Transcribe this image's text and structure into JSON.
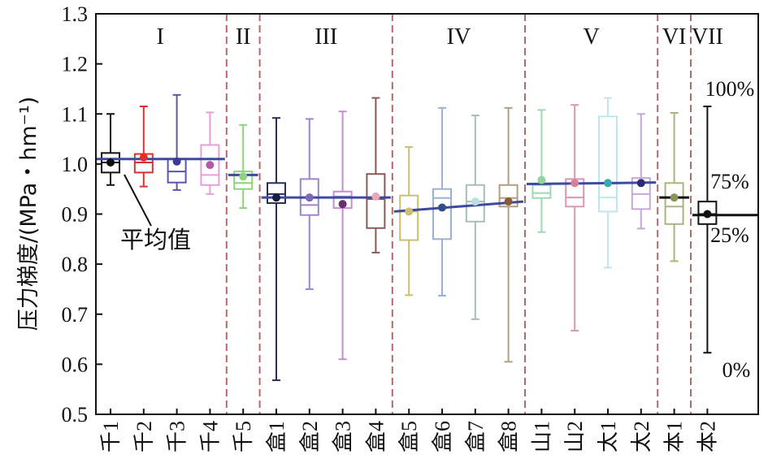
{
  "chart_data": {
    "type": "box",
    "ylabel": "压力梯度/(MPa・hm⁻¹)",
    "ylim": [
      0.5,
      1.3
    ],
    "yticks": [
      "0.5",
      "0.6",
      "0.7",
      "0.8",
      "0.9",
      "1.0",
      "1.1",
      "1.2",
      "1.3"
    ],
    "regions": [
      "I",
      "II",
      "III",
      "IV",
      "V",
      "VI",
      "VII"
    ],
    "mean_annotation": "平均值",
    "legend_percent": {
      "p100": "100%",
      "p75": "75%",
      "p25": "25%",
      "p0": "0%"
    },
    "series": [
      {
        "name": "千1",
        "region": 0,
        "color": "#111111",
        "min": 0.958,
        "q1": 0.983,
        "median": 1.003,
        "q3": 1.022,
        "max": 1.1,
        "mean": 1.003,
        "mean_color": "#111111"
      },
      {
        "name": "千2",
        "region": 0,
        "color": "#e0302d",
        "min": 0.955,
        "q1": 0.983,
        "median": 1.003,
        "q3": 1.02,
        "max": 1.115,
        "mean": 1.013,
        "mean_color": "#e0302d"
      },
      {
        "name": "千3",
        "region": 0,
        "color": "#5a57a6",
        "min": 0.948,
        "q1": 0.963,
        "median": 0.985,
        "q3": 1.01,
        "max": 1.138,
        "mean": 1.005,
        "mean_color": "#3d3a95"
      },
      {
        "name": "千4",
        "region": 0,
        "color": "#e6a0d8",
        "min": 0.94,
        "q1": 0.958,
        "median": 0.978,
        "q3": 1.038,
        "max": 1.103,
        "mean": 0.998,
        "mean_color": "#b45aa6"
      },
      {
        "name": "千5",
        "region": 1,
        "color": "#8fd17f",
        "min": 0.912,
        "q1": 0.95,
        "median": 0.962,
        "q3": 0.985,
        "max": 1.078,
        "mean": 0.975,
        "mean_color": "#8fd17f"
      },
      {
        "name": "盒1",
        "region": 2,
        "color": "#2c2d55",
        "min": 0.568,
        "q1": 0.922,
        "median": 0.94,
        "q3": 0.962,
        "max": 1.092,
        "mean": 0.933,
        "mean_color": "#1a1a3a"
      },
      {
        "name": "盒2",
        "region": 2,
        "color": "#9b86cc",
        "min": 0.75,
        "q1": 0.898,
        "median": 0.918,
        "q3": 0.97,
        "max": 1.09,
        "mean": 0.933,
        "mean_color": "#7e67b8"
      },
      {
        "name": "盒3",
        "region": 2,
        "color": "#c58ed0",
        "min": 0.61,
        "q1": 0.912,
        "median": 0.935,
        "q3": 0.945,
        "max": 1.105,
        "mean": 0.92,
        "mean_color": "#6a2d6e"
      },
      {
        "name": "盒4",
        "region": 2,
        "color": "#8a5a58",
        "min": 0.823,
        "q1": 0.872,
        "median": 0.93,
        "q3": 0.98,
        "max": 1.132,
        "mean": 0.935,
        "mean_color": "#e8a8b8"
      },
      {
        "name": "盒5",
        "region": 3,
        "color": "#c9c070",
        "min": 0.738,
        "q1": 0.848,
        "median": 0.905,
        "q3": 0.937,
        "max": 1.034,
        "mean": 0.905,
        "mean_color": "#c9c070"
      },
      {
        "name": "盒6",
        "region": 3,
        "color": "#9cb0d2",
        "min": 0.737,
        "q1": 0.85,
        "median": 0.932,
        "q3": 0.95,
        "max": 1.112,
        "mean": 0.913,
        "mean_color": "#2f4f86"
      },
      {
        "name": "盒7",
        "region": 3,
        "color": "#a8bdb6",
        "min": 0.69,
        "q1": 0.885,
        "median": 0.925,
        "q3": 0.958,
        "max": 1.097,
        "mean": 0.925,
        "mean_color": "#b8e0e0"
      },
      {
        "name": "盒8",
        "region": 3,
        "color": "#b49e82",
        "min": 0.605,
        "q1": 0.915,
        "median": 0.932,
        "q3": 0.958,
        "max": 1.112,
        "mean": 0.925,
        "mean_color": "#8a5a35"
      },
      {
        "name": "山1",
        "region": 4,
        "color": "#9fd8b2",
        "min": 0.864,
        "q1": 0.932,
        "median": 0.942,
        "q3": 0.958,
        "max": 1.108,
        "mean": 0.968,
        "mean_color": "#8fd4a4"
      },
      {
        "name": "山2",
        "region": 4,
        "color": "#d99ab0",
        "min": 0.667,
        "q1": 0.915,
        "median": 0.933,
        "q3": 0.97,
        "max": 1.118,
        "mean": 0.962,
        "mean_color": "#d9809e"
      },
      {
        "name": "太1",
        "region": 4,
        "color": "#bfe6ee",
        "min": 0.793,
        "q1": 0.905,
        "median": 0.933,
        "q3": 1.095,
        "max": 1.132,
        "mean": 0.962,
        "mean_color": "#3aa8b0"
      },
      {
        "name": "太2",
        "region": 4,
        "color": "#c6a8d8",
        "min": 0.871,
        "q1": 0.91,
        "median": 0.94,
        "q3": 0.972,
        "max": 1.1,
        "mean": 0.962,
        "mean_color": "#2e2a78"
      },
      {
        "name": "本1",
        "region": 5,
        "color": "#a8b67e",
        "min": 0.806,
        "q1": 0.88,
        "median": 0.915,
        "q3": 0.962,
        "max": 1.102,
        "mean": 0.933,
        "mean_color": "#8a935a"
      }
    ],
    "legend_box": {
      "name": "本2",
      "color": "#111111",
      "min": 0.623,
      "q1": 0.88,
      "median": 0.9,
      "q3": 0.925,
      "max": 1.115,
      "mean": 0.9,
      "mean_color": "#111111"
    },
    "region_means": [
      {
        "from": 0,
        "to": 3,
        "y0": 1.01,
        "y1": 1.01
      },
      {
        "from": 4,
        "to": 4,
        "y0": 0.978,
        "y1": 0.978
      },
      {
        "from": 5,
        "to": 8,
        "y0": 0.933,
        "y1": 0.933
      },
      {
        "from": 9,
        "to": 12,
        "y0": 0.905,
        "y1": 0.925
      },
      {
        "from": 13,
        "to": 16,
        "y0": 0.96,
        "y1": 0.963
      },
      {
        "from": 17,
        "to": 17,
        "y0": 0.933,
        "y1": 0.933
      },
      {
        "from": 18,
        "to": 18,
        "y0": 0.898,
        "y1": 0.898
      }
    ],
    "separators_after": [
      3,
      4,
      8,
      12,
      16,
      17
    ],
    "mean_line_color": "#3d4a9e",
    "separator_color": "#b06a6a"
  }
}
